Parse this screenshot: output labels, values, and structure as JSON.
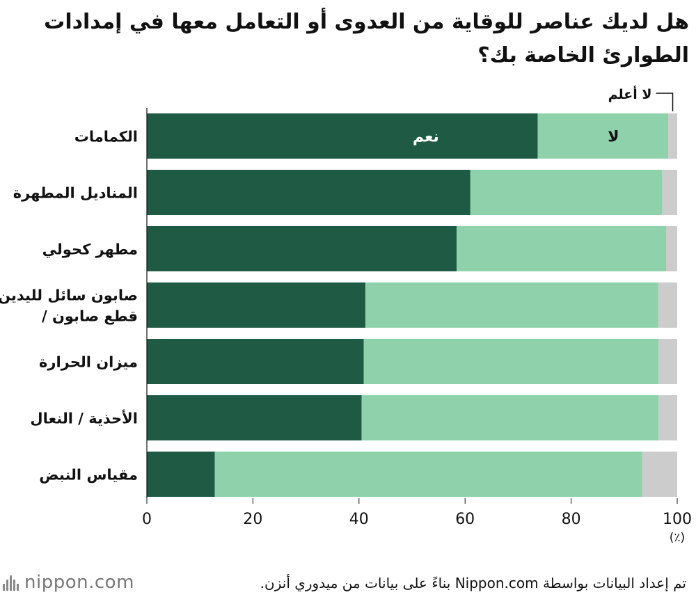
{
  "title": "هل لديك عناصر للوقاية من العدوى أو التعامل معها في إمدادات الطوارئ الخاصة بك؟",
  "colors": {
    "yes": "#1f5a45",
    "no": "#8fd1aa",
    "dont_know": "#cccccc"
  },
  "chart_data": {
    "type": "bar",
    "orientation": "horizontal",
    "stacked": true,
    "categories": [
      [
        "الكمامات"
      ],
      [
        "المناديل المطهرة"
      ],
      [
        "مطهر كحولي"
      ],
      [
        "صابون سائل لليدين",
        "/ قطع صابون"
      ],
      [
        "ميزان الحرارة"
      ],
      [
        "الأحذية / النعال"
      ],
      [
        "مقياس النبض"
      ]
    ],
    "series": [
      {
        "name": "نعم",
        "key": "yes",
        "values": [
          73.7,
          61.0,
          58.4,
          41.2,
          40.9,
          40.5,
          12.8
        ]
      },
      {
        "name": "لا",
        "key": "no",
        "values": [
          24.6,
          36.2,
          39.5,
          55.2,
          55.6,
          56.0,
          80.6
        ]
      },
      {
        "name": "لا أعلم",
        "key": "dont_know",
        "values": [
          1.7,
          2.8,
          2.1,
          3.6,
          3.5,
          3.5,
          6.6
        ]
      }
    ],
    "xlim": [
      0,
      100
    ],
    "xticks": [
      "0",
      "20",
      "40",
      "60",
      "80",
      "100"
    ],
    "xunit": "(٪)",
    "legend_placement": "inline-first-bar"
  },
  "footer": {
    "source": "تم إعداد البيانات بواسطة Nippon.com بناءً على بيانات من ميدوري أنزن.",
    "logo_text": "nippon.com"
  }
}
